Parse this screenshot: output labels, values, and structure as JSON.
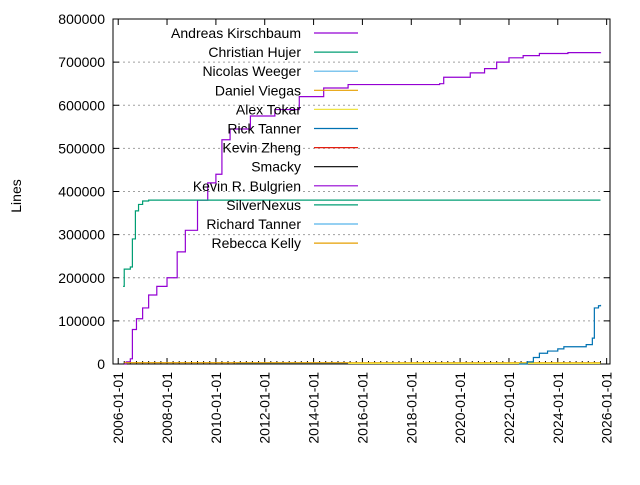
{
  "chart_data": {
    "type": "line",
    "title": "",
    "xlabel": "",
    "ylabel": "Lines",
    "xlim": [
      "2005-10-15",
      "2026-02-20"
    ],
    "ylim": [
      0,
      800000
    ],
    "x_ticks": [
      "2006-01-01",
      "2008-01-01",
      "2010-01-01",
      "2012-01-01",
      "2014-01-01",
      "2016-01-01",
      "2018-01-01",
      "2020-01-01",
      "2022-01-01",
      "2024-01-01",
      "2026-01-01"
    ],
    "y_ticks": [
      "0",
      "100000",
      "200000",
      "300000",
      "400000",
      "500000",
      "600000",
      "700000",
      "800000"
    ],
    "grid": "horizontal dotted",
    "legend_position": "top-left",
    "series": [
      {
        "name": "Andreas Kirschbaum",
        "color": "#9400d3",
        "points": [
          [
            "2006-04-01",
            0
          ],
          [
            "2006-05-01",
            5000
          ],
          [
            "2006-07-01",
            12000
          ],
          [
            "2006-08-01",
            80000
          ],
          [
            "2006-10-01",
            105000
          ],
          [
            "2007-01-01",
            130000
          ],
          [
            "2007-04-01",
            160000
          ],
          [
            "2007-08-01",
            180000
          ],
          [
            "2008-01-01",
            200000
          ],
          [
            "2008-06-01",
            260000
          ],
          [
            "2008-10-01",
            310000
          ],
          [
            "2009-04-01",
            380000
          ],
          [
            "2009-09-01",
            420000
          ],
          [
            "2010-01-01",
            440000
          ],
          [
            "2010-04-01",
            520000
          ],
          [
            "2010-08-01",
            545000
          ],
          [
            "2011-06-01",
            575000
          ],
          [
            "2012-06-01",
            590000
          ],
          [
            "2013-06-01",
            620000
          ],
          [
            "2014-06-01",
            640000
          ],
          [
            "2015-06-01",
            648000
          ],
          [
            "2019-03-01",
            650000
          ],
          [
            "2019-05-01",
            665000
          ],
          [
            "2020-06-01",
            675000
          ],
          [
            "2021-01-01",
            685000
          ],
          [
            "2021-07-01",
            700000
          ],
          [
            "2022-01-01",
            710000
          ],
          [
            "2022-08-01",
            715000
          ],
          [
            "2023-04-01",
            720000
          ],
          [
            "2024-06-01",
            722000
          ],
          [
            "2025-10-01",
            723000
          ]
        ]
      },
      {
        "name": "Christian Hujer",
        "color": "#009e73",
        "points": [
          [
            "2006-03-15",
            180000
          ],
          [
            "2006-04-01",
            220000
          ],
          [
            "2006-07-01",
            225000
          ],
          [
            "2006-08-01",
            290000
          ],
          [
            "2006-09-15",
            355000
          ],
          [
            "2006-11-01",
            370000
          ],
          [
            "2007-01-01",
            378000
          ],
          [
            "2007-04-01",
            380000
          ],
          [
            "2025-10-01",
            380000
          ]
        ]
      },
      {
        "name": "Nicolas Weeger",
        "color": "#56b4e9",
        "points": [
          [
            "2010-11-01",
            2500
          ],
          [
            "2015-06-01",
            2500
          ]
        ]
      },
      {
        "name": "Daniel Viegas",
        "color": "#e69f00",
        "points": [
          [
            "2006-04-01",
            3000
          ],
          [
            "2025-10-01",
            3000
          ]
        ]
      },
      {
        "name": "Alex Tokar",
        "color": "#f0e442",
        "points": [
          [
            "2015-06-01",
            1500
          ],
          [
            "2025-10-01",
            1500
          ]
        ]
      },
      {
        "name": "Rick Tanner",
        "color": "#0072b2",
        "points": [
          [
            "2022-06-01",
            0
          ],
          [
            "2022-10-01",
            5000
          ],
          [
            "2023-01-01",
            15000
          ],
          [
            "2023-04-01",
            25000
          ],
          [
            "2023-08-01",
            30000
          ],
          [
            "2024-01-01",
            35000
          ],
          [
            "2024-04-01",
            40000
          ],
          [
            "2025-03-01",
            45000
          ],
          [
            "2025-06-01",
            60000
          ],
          [
            "2025-07-01",
            130000
          ],
          [
            "2025-09-01",
            135000
          ],
          [
            "2025-10-01",
            137000
          ]
        ]
      },
      {
        "name": "Kevin Zheng",
        "color": "#e51e10",
        "points": []
      },
      {
        "name": "Smacky",
        "color": "#000000",
        "points": []
      },
      {
        "name": "Kevin R. Bulgrien",
        "color": "#9400d3",
        "points": []
      },
      {
        "name": "SilverNexus",
        "color": "#009e73",
        "points": []
      },
      {
        "name": "Richard Tanner",
        "color": "#56b4e9",
        "points": []
      },
      {
        "name": "Rebecca Kelly",
        "color": "#e69f00",
        "points": []
      }
    ]
  }
}
